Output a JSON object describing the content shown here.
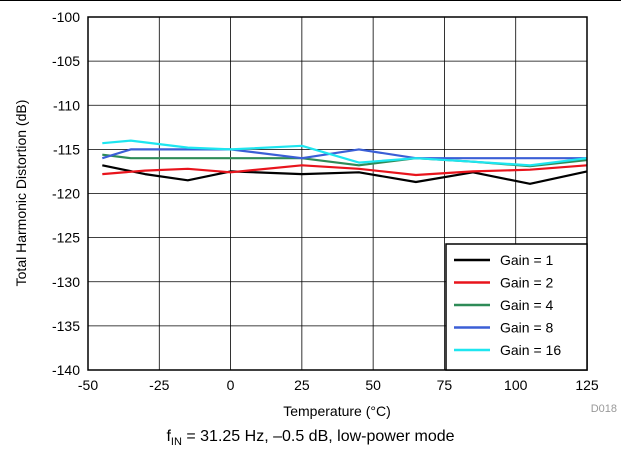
{
  "chart_data": {
    "type": "line",
    "xlabel": "Temperature (°C)",
    "ylabel": "Total Harmonic Distortion (dB)",
    "xlim": [
      -50,
      125
    ],
    "ylim": [
      -140,
      -100
    ],
    "x_ticks": [
      -50,
      -25,
      0,
      25,
      50,
      75,
      100,
      125
    ],
    "y_ticks": [
      -100,
      -105,
      -110,
      -115,
      -120,
      -125,
      -130,
      -135,
      -140
    ],
    "grid": true,
    "legend_position": "bottom-right",
    "figure_id": "D018",
    "series": [
      {
        "name": "Gain = 1",
        "color": "#000000",
        "x": [
          -45,
          -30,
          -15,
          0,
          25,
          45,
          65,
          85,
          105,
          125
        ],
        "y": [
          -116.8,
          -117.8,
          -118.5,
          -117.5,
          -117.8,
          -117.6,
          -118.7,
          -117.6,
          -118.9,
          -117.5
        ]
      },
      {
        "name": "Gain = 2",
        "color": "#e8141c",
        "x": [
          -45,
          -30,
          -15,
          0,
          25,
          45,
          65,
          85,
          105,
          125
        ],
        "y": [
          -117.8,
          -117.4,
          -117.2,
          -117.6,
          -116.8,
          -117.2,
          -117.9,
          -117.5,
          -117.3,
          -116.8
        ]
      },
      {
        "name": "Gain = 4",
        "color": "#2e8b57",
        "x": [
          -45,
          -35,
          -15,
          0,
          25,
          45,
          65,
          85,
          105,
          125
        ],
        "y": [
          -115.6,
          -116.0,
          -116.0,
          -116.0,
          -116.0,
          -116.8,
          -116.0,
          -116.4,
          -116.9,
          -116.2
        ]
      },
      {
        "name": "Gain = 8",
        "color": "#3b5fd6",
        "x": [
          -45,
          -35,
          -15,
          0,
          25,
          45,
          65,
          85,
          105,
          125
        ],
        "y": [
          -116.0,
          -115.0,
          -115.0,
          -115.0,
          -116.0,
          -115.0,
          -116.0,
          -116.0,
          -116.0,
          -116.0
        ]
      },
      {
        "name": "Gain = 16",
        "color": "#1ee6f0",
        "x": [
          -45,
          -35,
          -15,
          0,
          25,
          45,
          65,
          85,
          105,
          125
        ],
        "y": [
          -114.3,
          -114.0,
          -114.8,
          -115.0,
          -114.6,
          -116.5,
          -116.0,
          -116.4,
          -116.8,
          -116.0
        ]
      }
    ]
  },
  "caption": {
    "prefix": "f",
    "subscript": "IN",
    "rest": " = 31.25 Hz, –0.5 dB, low-power mode"
  }
}
